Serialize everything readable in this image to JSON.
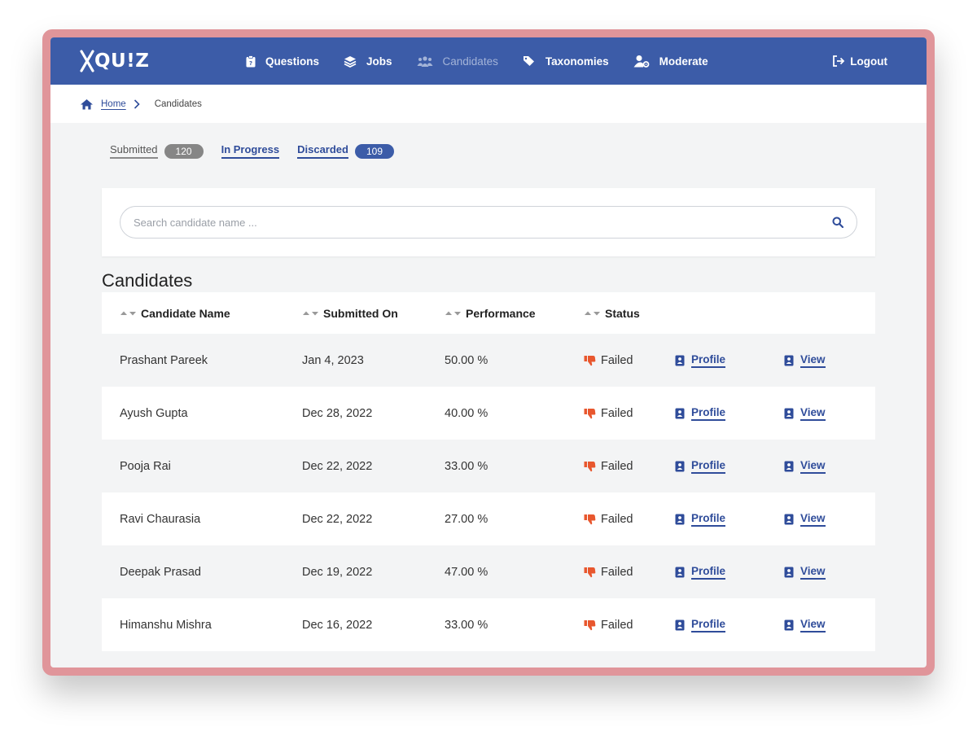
{
  "app": {
    "logo_text": "QU!Z"
  },
  "nav": {
    "items": [
      {
        "label": "Questions",
        "icon": "clipboard-icon"
      },
      {
        "label": "Jobs",
        "icon": "layers-icon"
      },
      {
        "label": "Candidates",
        "icon": "users-icon"
      },
      {
        "label": "Taxonomies",
        "icon": "tag-icon"
      },
      {
        "label": "Moderate",
        "icon": "user-gear-icon"
      }
    ],
    "logout_label": "Logout"
  },
  "breadcrumb": {
    "home": "Home",
    "current": "Candidates"
  },
  "tabs": [
    {
      "label": "Submitted",
      "count": "120"
    },
    {
      "label": "In Progress"
    },
    {
      "label": "Discarded",
      "count": "109"
    }
  ],
  "search": {
    "placeholder": "Search candidate name ..."
  },
  "section_title": "Candidates",
  "table": {
    "headers": [
      "Candidate Name",
      "Submitted On",
      "Performance",
      "Status"
    ],
    "profile_label": "Profile",
    "view_label": "View",
    "rows": [
      {
        "name": "Prashant Pareek",
        "date": "Jan 4, 2023",
        "performance": "50.00 %",
        "status": "Failed"
      },
      {
        "name": "Ayush Gupta",
        "date": "Dec 28, 2022",
        "performance": "40.00 %",
        "status": "Failed"
      },
      {
        "name": "Pooja Rai",
        "date": "Dec 22, 2022",
        "performance": "33.00 %",
        "status": "Failed"
      },
      {
        "name": "Ravi Chaurasia",
        "date": "Dec 22, 2022",
        "performance": "27.00 %",
        "status": "Failed"
      },
      {
        "name": "Deepak Prasad",
        "date": "Dec 19, 2022",
        "performance": "47.00 %",
        "status": "Failed"
      },
      {
        "name": "Himanshu Mishra",
        "date": "Dec 16, 2022",
        "performance": "33.00 %",
        "status": "Failed"
      }
    ]
  },
  "colors": {
    "primary": "#3c5ca8",
    "failed": "#e8572e",
    "frame": "#e0959a"
  }
}
